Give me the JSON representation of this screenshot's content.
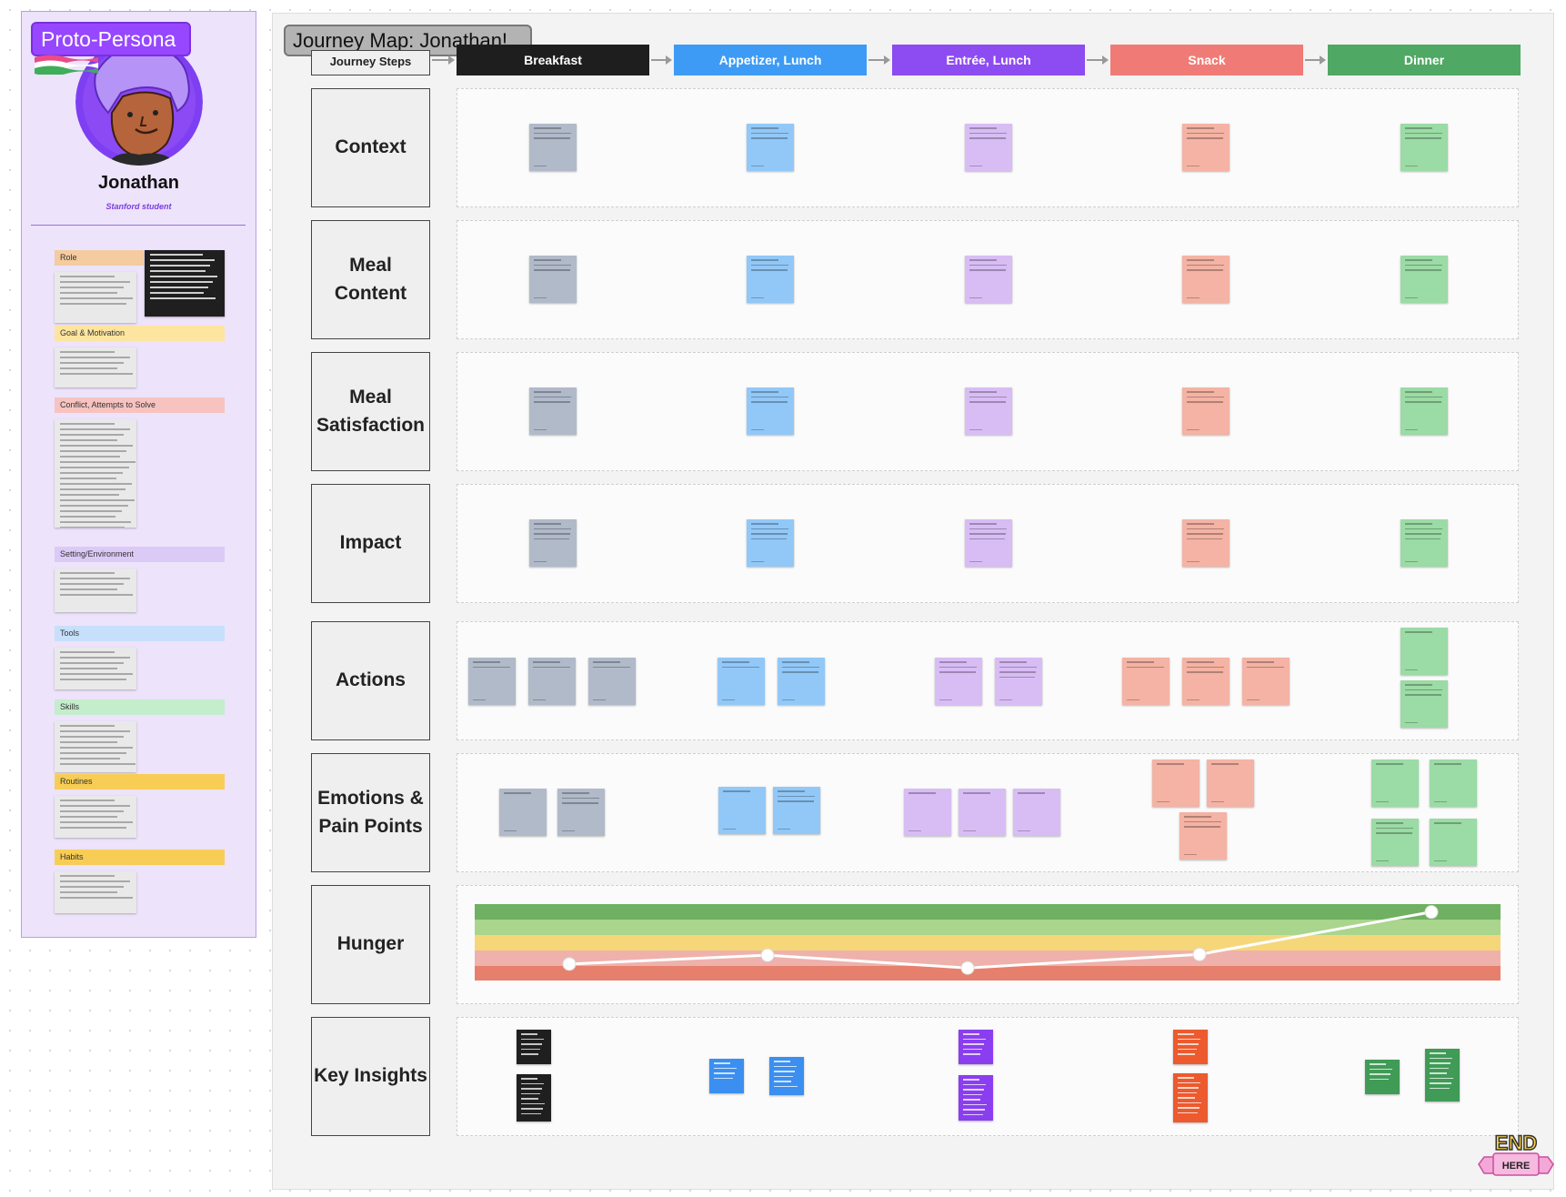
{
  "persona": {
    "title": "Proto-Persona",
    "name": "Jonathan",
    "subtitle": "Stanford student",
    "sections": [
      {
        "label": "Role",
        "color": "#f5cba0"
      },
      {
        "label": "Goal & Motivation",
        "color": "#fde5a0"
      },
      {
        "label": "Conflict, Attempts to Solve",
        "color": "#f6c3c0"
      },
      {
        "label": "Setting/Environment",
        "color": "#dccaf6"
      },
      {
        "label": "Tools",
        "color": "#c6e0fb"
      },
      {
        "label": "Skills",
        "color": "#c4edcc"
      },
      {
        "label": "Routines",
        "color": "#f8cd55"
      },
      {
        "label": "Habits",
        "color": "#f8cd55"
      }
    ]
  },
  "board": {
    "title": "Journey Map: Jonathan!",
    "steps_label": "Journey Steps",
    "steps": [
      {
        "label": "Breakfast",
        "color": "#1e1e1e",
        "note_color": "#b1bac9",
        "ink_color": "#1f1f1f"
      },
      {
        "label": "Appetizer, Lunch",
        "color": "#3d9bf5",
        "note_color": "#92c8f7",
        "ink_color": "#3b8ff0"
      },
      {
        "label": "Entrée, Lunch",
        "color": "#8d4bf2",
        "note_color": "#d8bdf5",
        "ink_color": "#8a3ef0"
      },
      {
        "label": "Snack",
        "color": "#f07b76",
        "note_color": "#f4b3a4",
        "ink_color": "#ec5a2e"
      },
      {
        "label": "Dinner",
        "color": "#4fa864",
        "note_color": "#9bdba5",
        "ink_color": "#3f9b56"
      }
    ],
    "rows": [
      {
        "label": "Context"
      },
      {
        "label": "Meal Content"
      },
      {
        "label": "Meal Satisfaction"
      },
      {
        "label": "Impact"
      },
      {
        "label": "Actions"
      },
      {
        "label": "Emotions & Pain Points"
      },
      {
        "label": "Hunger"
      },
      {
        "label": "Key Insights"
      }
    ]
  },
  "hunger": {
    "band_colors": [
      "#6fb062",
      "#a9d58c",
      "#f5d77a",
      "#efb1ab",
      "#e6806d",
      "#d8694a"
    ],
    "levels": [
      0.32,
      0.43,
      0.27,
      0.44,
      0.97
    ]
  },
  "badge": {
    "top": "END",
    "bottom": "HERE"
  }
}
